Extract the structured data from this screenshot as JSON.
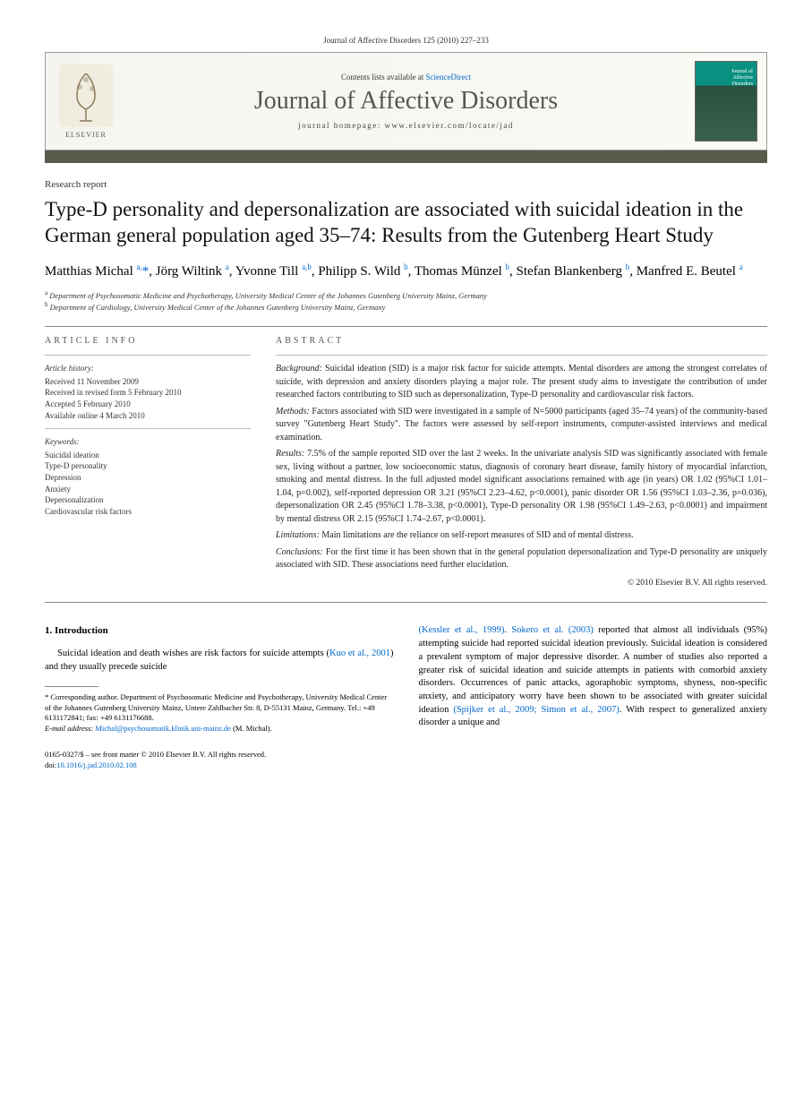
{
  "header": {
    "citation": "Journal of Affective Disorders 125 (2010) 227–233",
    "contents_prefix": "Contents lists available at ",
    "contents_link": "ScienceDirect",
    "journal_title": "Journal of Affective Disorders",
    "homepage_prefix": "journal homepage: ",
    "homepage_url": "www.elsevier.com/locate/jad",
    "publisher": "ELSEVIER",
    "cover_line1": "Journal of",
    "cover_line2": "Affective",
    "cover_line3": "Disorders"
  },
  "article": {
    "type": "Research report",
    "title": "Type-D personality and depersonalization are associated with suicidal ideation in the German general population aged 35–74: Results from the Gutenberg Heart Study",
    "authors_html": "Matthias Michal <sup>a,</sup><span class='asterisk'>*</span>, Jörg Wiltink <sup>a</sup>, Yvonne Till <sup>a,b</sup>, Philipp S. Wild <sup>b</sup>, Thomas Münzel <sup>b</sup>, Stefan Blankenberg <sup>b</sup>, Manfred E. Beutel <sup>a</sup>",
    "affiliations": {
      "a": "Department of Psychosomatic Medicine and Psychotherapy, University Medical Center of the Johannes Gutenberg University Mainz, Germany",
      "b": "Department of Cardiology, University Medical Center of the Johannes Gutenberg University Mainz, Germany"
    }
  },
  "info": {
    "label": "ARTICLE INFO",
    "history_heading": "Article history:",
    "history": [
      "Received 11 November 2009",
      "Received in revised form 5 February 2010",
      "Accepted 5 February 2010",
      "Available online 4 March 2010"
    ],
    "keywords_heading": "Keywords:",
    "keywords": [
      "Suicidal ideation",
      "Type-D personality",
      "Depression",
      "Anxiety",
      "Depersonalization",
      "Cardiovascular risk factors"
    ]
  },
  "abstract": {
    "label": "ABSTRACT",
    "background_label": "Background:",
    "background": "Suicidal ideation (SID) is a major risk factor for suicide attempts. Mental disorders are among the strongest correlates of suicide, with depression and anxiety disorders playing a major role. The present study aims to investigate the contribution of under researched factors contributing to SID such as depersonalization, Type-D personality and cardiovascular risk factors.",
    "methods_label": "Methods:",
    "methods": "Factors associated with SID were investigated in a sample of N=5000 participants (aged 35–74 years) of the community-based survey \"Gutenberg Heart Study\". The factors were assessed by self-report instruments, computer-assisted interviews and medical examination.",
    "results_label": "Results:",
    "results": "7.5% of the sample reported SID over the last 2 weeks. In the univariate analysis SID was significantly associated with female sex, living without a partner, low socioeconomic status, diagnosis of coronary heart disease, family history of myocardial infarction, smoking and mental distress. In the full adjusted model significant associations remained with age (in years) OR 1.02 (95%CI 1.01–1.04, p=0.002), self-reported depression OR 3.21 (95%CI 2.23–4.62, p<0.0001), panic disorder OR 1.56 (95%CI 1.03–2.36, p=0.036), depersonalization OR 2.45 (95%CI 1.78–3.38, p<0.0001), Type-D personality OR 1.98 (95%CI 1.49–2.63, p<0.0001) and impairment by mental distress OR 2.15 (95%CI 1.74–2.67, p<0.0001).",
    "limitations_label": "Limitations:",
    "limitations": "Main limitations are the reliance on self-report measures of SID and of mental distress.",
    "conclusions_label": "Conclusions:",
    "conclusions": "For the first time it has been shown that in the general population depersonalization and Type-D personality are uniquely associated with SID. These associations need further elucidation.",
    "copyright": "© 2010 Elsevier B.V. All rights reserved."
  },
  "body": {
    "heading": "1. Introduction",
    "col1": "Suicidal ideation and death wishes are risk factors for suicide attempts (",
    "col1_ref1": "Kuo et al., 2001",
    "col1_cont": ") and they usually precede suicide",
    "col2_ref1": "(Kessler et al., 1999)",
    "col2_mid1": ". ",
    "col2_ref2": "Sokero et al. (2003)",
    "col2_cont": " reported that almost all individuals (95%) attempting suicide had reported suicidal ideation previously. Suicidal ideation is considered a prevalent symptom of major depressive disorder. A number of studies also reported a greater risk of suicidal ideation and suicide attempts in patients with comorbid anxiety disorders. Occurrences of panic attacks, agoraphobic symptoms, shyness, non-specific anxiety, and anticipatory worry have been shown to be associated with greater suicidal ideation ",
    "col2_ref3": "(Spijker et al., 2009; Simon et al., 2007)",
    "col2_end": ". With respect to generalized anxiety disorder a unique and"
  },
  "footnote": {
    "corresponding": "* Corresponding author. Department of Psychosomatic Medicine and Psychotherapy, University Medical Center of the Johannes Gutenberg University Mainz, Untere Zahlbacher Str. 8, D-55131 Mainz, Germany. Tel.: +49 6131172841; fax: +49 6131176688.",
    "email_label": "E-mail address:",
    "email": "Michal@psychosomatik.klinik.uni-mainz.de",
    "email_author": "(M. Michal)."
  },
  "bottom": {
    "issn": "0165-0327/$ – see front matter © 2010 Elsevier B.V. All rights reserved.",
    "doi_label": "doi:",
    "doi": "10.1016/j.jad.2010.02.108"
  }
}
